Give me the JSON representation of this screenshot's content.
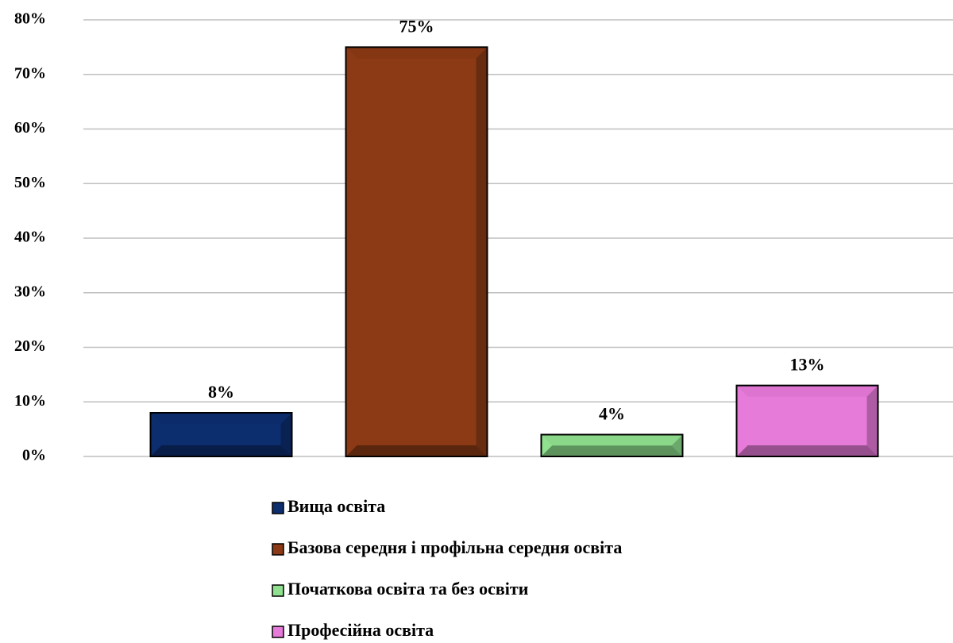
{
  "chart_data": {
    "type": "bar",
    "categories": [
      null
    ],
    "series": [
      {
        "name": "Вища освіта",
        "color": "#0c2d6e",
        "values": [
          8
        ],
        "value_labels": [
          "8%"
        ]
      },
      {
        "name": "Базова середня і профільна середня освіта",
        "color": "#8b3a15",
        "values": [
          75
        ],
        "value_labels": [
          "75%"
        ]
      },
      {
        "name": "Початкова освіта та без освіти",
        "color": "#8fe08f",
        "values": [
          4
        ],
        "value_labels": [
          "4%"
        ]
      },
      {
        "name": "Професійна освіта",
        "color": "#e67bd9",
        "values": [
          13
        ],
        "value_labels": [
          "13%"
        ]
      }
    ],
    "ylim": [
      0,
      80
    ],
    "yticks": [
      {
        "value": 0,
        "label": "0%"
      },
      {
        "value": 10,
        "label": "10%"
      },
      {
        "value": 20,
        "label": "20%"
      },
      {
        "value": 30,
        "label": "30%"
      },
      {
        "value": 40,
        "label": "40%"
      },
      {
        "value": 50,
        "label": "50%"
      },
      {
        "value": 60,
        "label": "60%"
      },
      {
        "value": 70,
        "label": "70%"
      },
      {
        "value": 80,
        "label": "80%"
      }
    ],
    "grid": true
  }
}
